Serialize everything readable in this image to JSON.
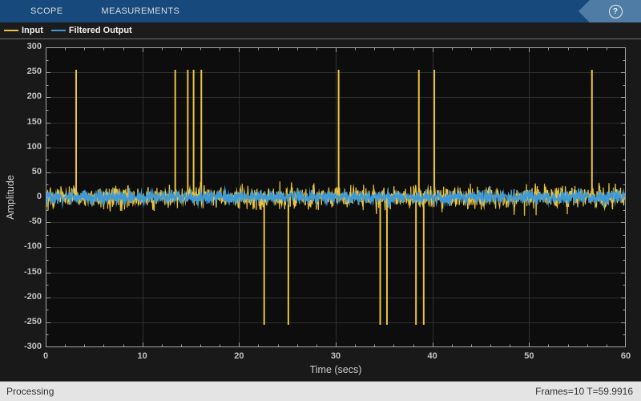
{
  "toolbar": {
    "tabs": [
      {
        "label": "SCOPE"
      },
      {
        "label": "MEASUREMENTS"
      }
    ],
    "help_label": "?"
  },
  "legend": {
    "items": [
      {
        "label": "Input",
        "color": "#e9c33f"
      },
      {
        "label": "Filtered Output",
        "color": "#3e9ad6"
      }
    ]
  },
  "status_bar": {
    "left": "Processing",
    "right": "Frames=10  T=59.9916"
  },
  "chart_data": {
    "type": "line",
    "title": "",
    "xlabel": "Time (secs)",
    "ylabel": "Amplitude",
    "xlim": [
      0,
      60
    ],
    "ylim": [
      -300,
      300
    ],
    "x_ticks": [
      0,
      10,
      20,
      30,
      40,
      50,
      60
    ],
    "y_ticks": [
      -300,
      -250,
      -200,
      -150,
      -100,
      -50,
      0,
      50,
      100,
      150,
      200,
      250,
      300
    ],
    "x_minor_step": 2,
    "y_minor_step": 25,
    "grid": true,
    "legend_position": "top-left-bar",
    "colors": {
      "axes_bg": "#0d0d0d",
      "grid": "#2f2f2f",
      "border": "#a6a6a6",
      "tick": "#9f9f9f",
      "tick_label": "#c2c2c2"
    },
    "series": [
      {
        "name": "Input",
        "color": "#e9c33f",
        "noise_std": 11,
        "noise_clip": 42,
        "spike_amplitude": 255,
        "positive_spike_times": [
          3.15,
          13.4,
          14.7,
          15.3,
          16.1,
          30.3,
          38.6,
          40.2,
          56.5
        ],
        "negative_spike_times": [
          22.6,
          25.1,
          34.6,
          35.3,
          38.3,
          39.1
        ]
      },
      {
        "name": "Filtered Output",
        "color": "#3e9ad6",
        "noise_std": 6,
        "noise_clip": 22,
        "spike_amplitude": 0,
        "positive_spike_times": [],
        "negative_spike_times": []
      }
    ]
  }
}
